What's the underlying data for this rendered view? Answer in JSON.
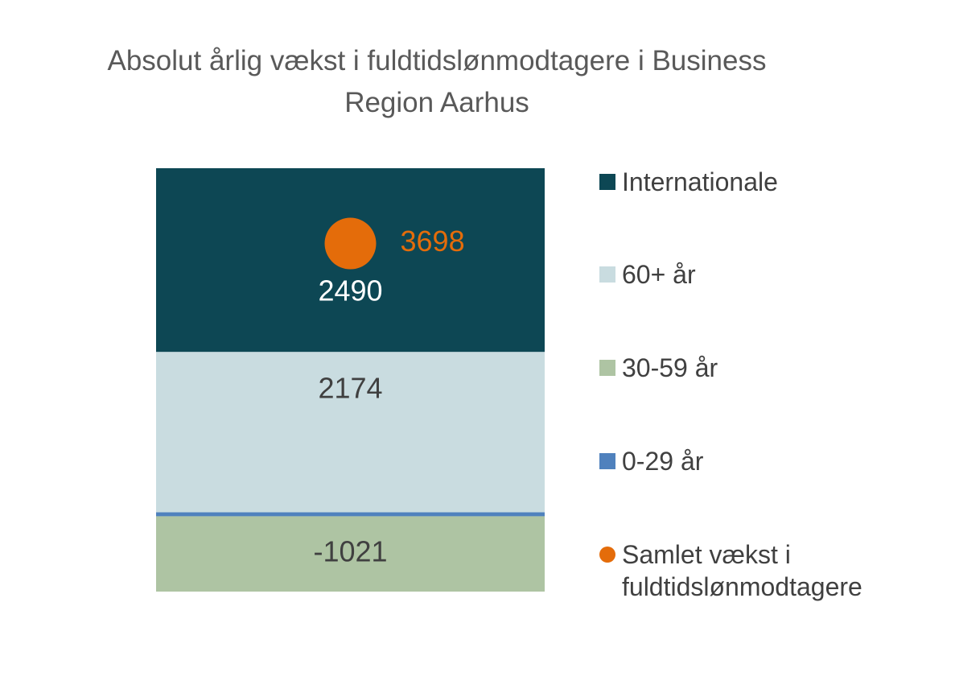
{
  "chart_data": {
    "type": "bar",
    "stacked": true,
    "title": "Absolut årlig vækst i fuldtidslønmodtagere i Business Region Aarhus",
    "categories": [
      null
    ],
    "series": [
      {
        "name": "Internationale",
        "color": "#0d4754",
        "values": [
          2490
        ],
        "label_color": "#ffffff"
      },
      {
        "name": "60+ år",
        "color": "#c9dce0",
        "values": [
          2174
        ],
        "label_color": "#404040"
      },
      {
        "name": "30-59 år",
        "color": "#aec4a3",
        "values": [
          -1021
        ],
        "label_color": "#404040"
      },
      {
        "name": "0-29 år",
        "color": "#4f81bd",
        "values": [
          55
        ],
        "label_color": "#404040"
      },
      {
        "name": "Samlet vækst i fuldtidslønmodtagere",
        "color": "#e46c0a",
        "type": "point",
        "values": [
          3698
        ],
        "label_color": "#e46c0a"
      }
    ],
    "legend": "right"
  }
}
